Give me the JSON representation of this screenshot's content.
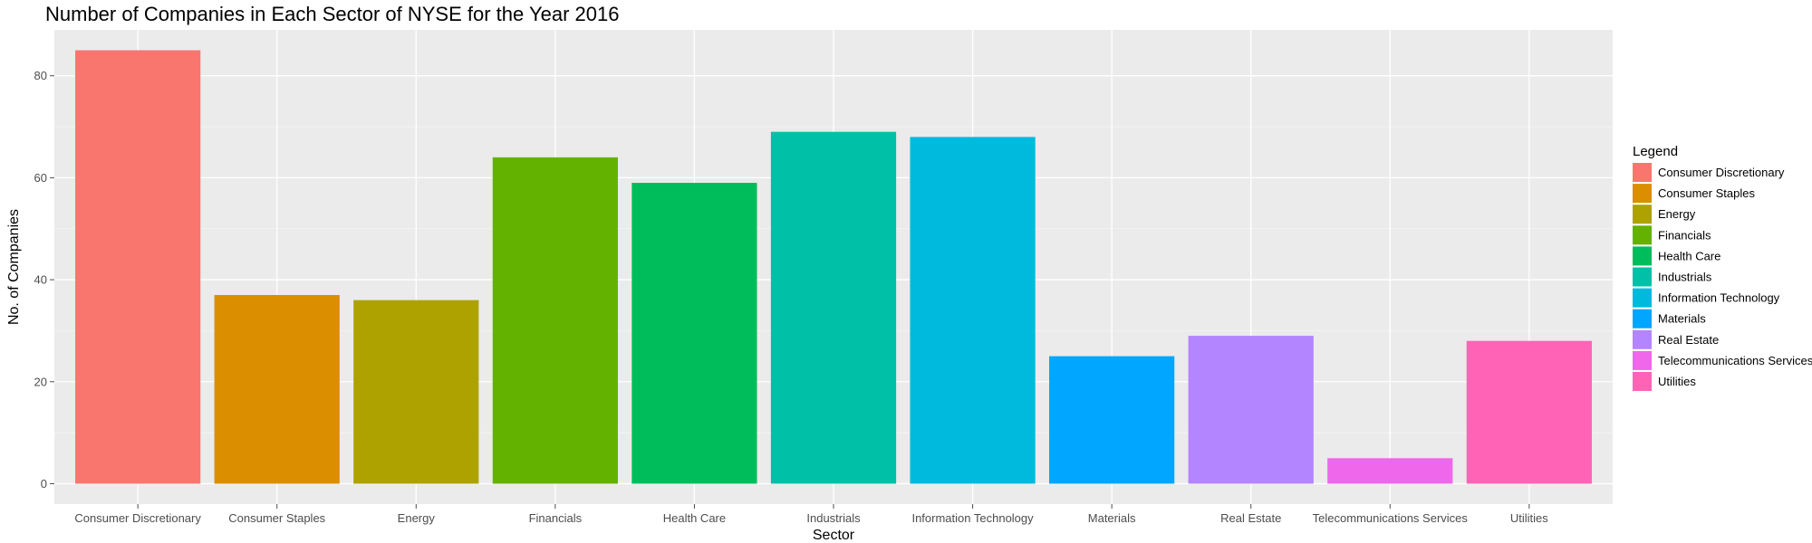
{
  "chart_data": {
    "type": "bar",
    "title": "Number of Companies in Each Sector of NYSE for the Year 2016",
    "xlabel": "Sector",
    "ylabel": "No. of Companies",
    "ylim": [
      -4,
      89
    ],
    "yticks": [
      0,
      20,
      40,
      60,
      80
    ],
    "grid": true,
    "legend_position": "right",
    "legend_title": "Legend",
    "categories": [
      "Consumer Discretionary",
      "Consumer Staples",
      "Energy",
      "Financials",
      "Health Care",
      "Industrials",
      "Information Technology",
      "Materials",
      "Real Estate",
      "Telecommunications Services",
      "Utilities"
    ],
    "values": [
      85,
      37,
      36,
      64,
      59,
      69,
      68,
      25,
      29,
      5,
      28
    ],
    "colors": [
      "#F8766D",
      "#DB8E00",
      "#AEA200",
      "#64B200",
      "#00BD5C",
      "#00C1A7",
      "#00BADE",
      "#00A6FF",
      "#B385FF",
      "#EF67EB",
      "#FF63B6"
    ]
  }
}
